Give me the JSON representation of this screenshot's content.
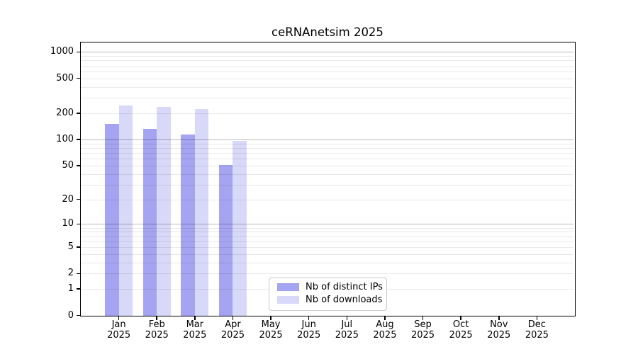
{
  "chart_data": {
    "type": "bar",
    "title": "ceRNAnetsim 2025",
    "y_scale": "log1p (position proportional to log10(value+1))",
    "y_ticks": [
      0,
      1,
      2,
      5,
      10,
      20,
      50,
      100,
      200,
      500,
      1000
    ],
    "ylim": [
      0,
      1260
    ],
    "grid": "horizontal; minor lines at 2-9 per decade, darker lines at 10/100/1000; drawn over bars",
    "legend_position": "inside bottom-center",
    "categories": [
      "Jan 2025",
      "Feb 2025",
      "Mar 2025",
      "Apr 2025",
      "May 2025",
      "Jun 2025",
      "Jul 2025",
      "Aug 2025",
      "Sep 2025",
      "Oct 2025",
      "Nov 2025",
      "Dec 2025"
    ],
    "series": [
      {
        "name": "Nb of distinct IPs",
        "color": "#a4a4f0",
        "values": [
          152,
          132,
          114,
          51,
          null,
          null,
          null,
          null,
          null,
          null,
          null,
          null
        ]
      },
      {
        "name": "Nb of downloads",
        "color": "#d8d8f8",
        "values": [
          245,
          238,
          224,
          97,
          null,
          null,
          null,
          null,
          null,
          null,
          null,
          null
        ]
      }
    ]
  },
  "colors": {
    "axis": "#000000",
    "grid_minor": "#e9e9e9",
    "grid_major": "#bababa",
    "background": "#ffffff",
    "legend_border": "#c9c9c9"
  }
}
